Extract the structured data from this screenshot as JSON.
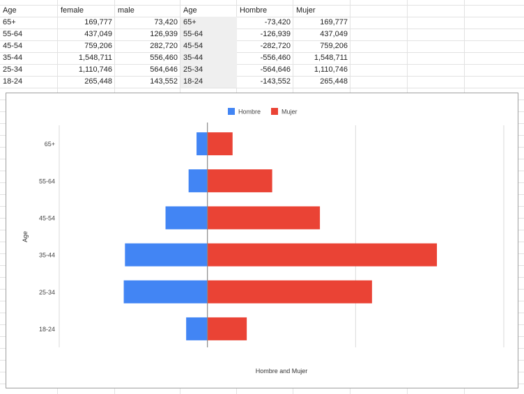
{
  "sheet": {
    "headers": [
      "Age",
      "female",
      "male",
      "Age",
      "Hombre",
      "Mujer"
    ],
    "rows": [
      [
        "65+",
        "169,777",
        "73,420",
        "65+",
        "-73,420",
        "169,777"
      ],
      [
        "55-64",
        "437,049",
        "126,939",
        "55-64",
        "-126,939",
        "437,049"
      ],
      [
        "45-54",
        "759,206",
        "282,720",
        "45-54",
        "-282,720",
        "759,206"
      ],
      [
        "35-44",
        "1,548,711",
        "556,460",
        "35-44",
        "-556,460",
        "1,548,711"
      ],
      [
        "25-34",
        "1,110,746",
        "564,646",
        "25-34",
        "-564,646",
        "1,110,746"
      ],
      [
        "18-24",
        "265,448",
        "143,552",
        "18-24",
        "-143,552",
        "265,448"
      ]
    ]
  },
  "chart_data": {
    "type": "bar",
    "orientation": "horizontal",
    "categories": [
      "65+",
      "55-64",
      "45-54",
      "35-44",
      "25-34",
      "18-24"
    ],
    "series": [
      {
        "name": "Hombre",
        "color": "#4285f4",
        "values": [
          -73420,
          -126939,
          -282720,
          -556460,
          -564646,
          -143552
        ]
      },
      {
        "name": "Mujer",
        "color": "#ea4335",
        "values": [
          169777,
          437049,
          759206,
          1548711,
          1110746,
          265448
        ]
      }
    ],
    "title": "",
    "xlabel": "Hombre and Mujer",
    "ylabel": "Age",
    "xlim": [
      -1000000,
      2000000
    ],
    "grid": true,
    "legend": "top"
  }
}
